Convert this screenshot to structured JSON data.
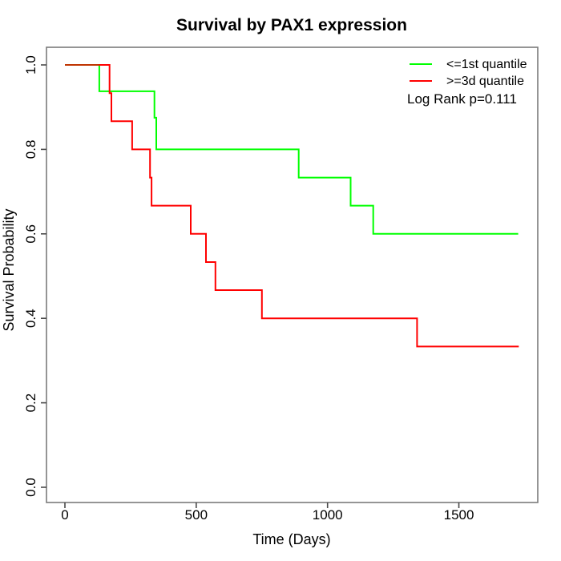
{
  "chart_data": {
    "type": "line",
    "subtype": "kaplan-meier-step",
    "title": "Survival by PAX1 expression",
    "xlabel": "Time (Days)",
    "ylabel": "Survival Probability",
    "xlim": [
      0,
      1800
    ],
    "ylim": [
      0.0,
      1.0
    ],
    "x_ticks": [
      "0",
      "500",
      "1000",
      "1500"
    ],
    "y_ticks": [
      "0.0",
      "0.2",
      "0.4",
      "0.6",
      "0.8",
      "1.0"
    ],
    "grid": false,
    "legend_position": "top-right",
    "annotation": "Log Rank p=0.111",
    "series": [
      {
        "name": "<=1st quantile",
        "color": "#00ff00",
        "steps": [
          [
            0,
            1.0
          ],
          [
            131,
            0.9375
          ],
          [
            341,
            0.875
          ],
          [
            348,
            0.8
          ],
          [
            890,
            0.7333
          ],
          [
            1088,
            0.6667
          ],
          [
            1174,
            0.6
          ]
        ],
        "end_time": 1726
      },
      {
        "name": ">=3d quantile",
        "color": "#ff0000",
        "steps": [
          [
            0,
            1.0
          ],
          [
            170,
            0.9333
          ],
          [
            177,
            0.8667
          ],
          [
            256,
            0.8
          ],
          [
            324,
            0.7333
          ],
          [
            330,
            0.6667
          ],
          [
            479,
            0.6
          ],
          [
            537,
            0.5333
          ],
          [
            573,
            0.4667
          ],
          [
            750,
            0.4
          ],
          [
            1341,
            0.3333
          ]
        ],
        "end_time": 1728
      }
    ],
    "overlap_segment": {
      "color": "#bf3300",
      "from": 0,
      "to": 131,
      "value": 1.0
    }
  }
}
